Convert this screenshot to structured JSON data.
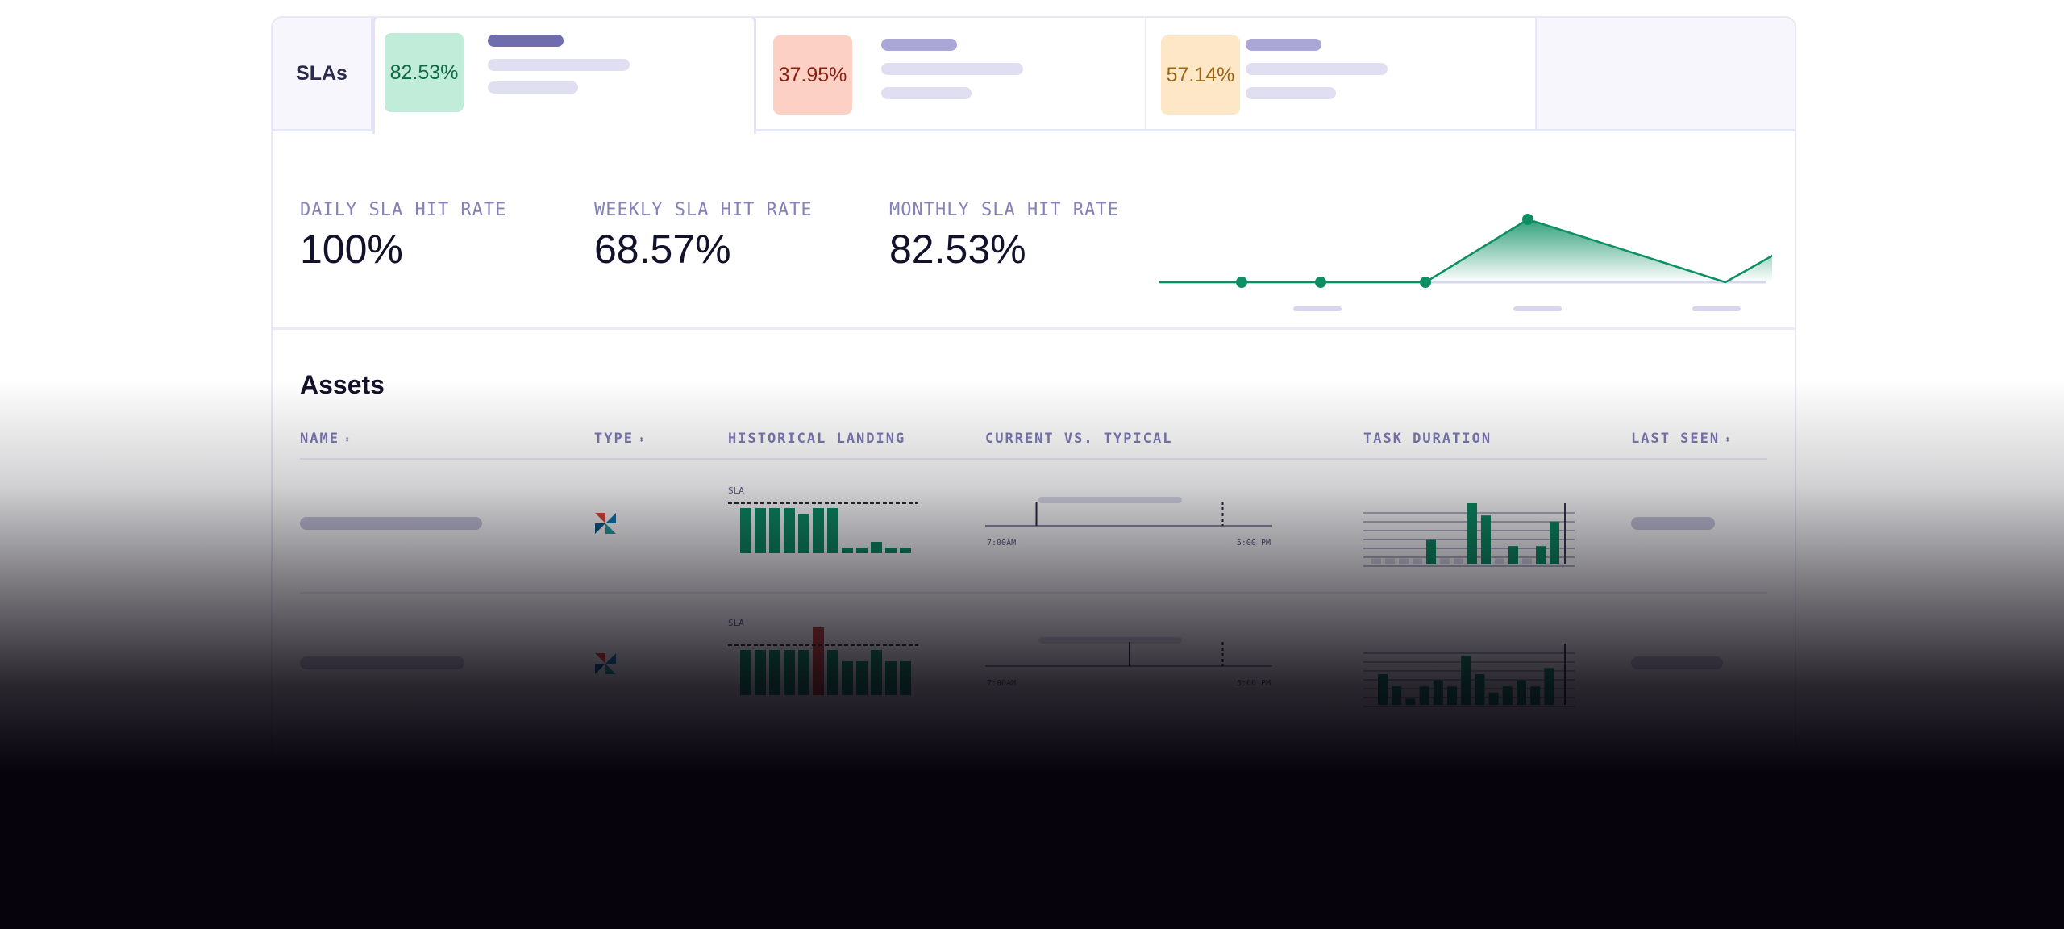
{
  "tabs": {
    "label": "SLAs",
    "items": [
      {
        "value": "82.53%",
        "bg": "#c1ecd9",
        "fg": "#0e6a45"
      },
      {
        "value": "37.95%",
        "bg": "#fdd0c5",
        "fg": "#8a1f0f"
      },
      {
        "value": "57.14%",
        "bg": "#fde7c6",
        "fg": "#9c6612"
      }
    ]
  },
  "stats": [
    {
      "label": "DAILY SLA HIT RATE",
      "value": "100%"
    },
    {
      "label": "WEEKLY SLA HIT RATE",
      "value": "68.57%"
    },
    {
      "label": "MONTHLY SLA HIT RATE",
      "value": "82.53%"
    }
  ],
  "trend": {
    "values": [
      0,
      0,
      0,
      1,
      0,
      1
    ]
  },
  "assets": {
    "title": "Assets",
    "columns": [
      {
        "label": "NAME",
        "sortable": true
      },
      {
        "label": "TYPE",
        "sortable": true
      },
      {
        "label": "HISTORICAL LANDING",
        "sortable": false
      },
      {
        "label": "CURRENT VS. TYPICAL",
        "sortable": false
      },
      {
        "label": "TASK DURATION",
        "sortable": false
      },
      {
        "label": "LAST SEEN",
        "sortable": true
      }
    ],
    "sort_glyph": "⬍",
    "sla_label": "SLA",
    "rows": [
      {
        "type_icon": "pinwheel-icon",
        "landing": [
          8,
          8,
          8,
          8,
          7,
          8,
          8,
          1,
          1,
          2,
          1,
          1
        ],
        "landing_late": [],
        "timeline": {
          "start": "7:00AM",
          "end": "5:00 PM",
          "current": 0.17,
          "typical": 0.83
        },
        "durations": [
          1,
          1,
          1,
          1,
          4,
          1,
          1,
          10,
          8,
          1,
          3,
          1,
          3,
          7
        ],
        "durations_failed": [
          0,
          1,
          2,
          3,
          5,
          6,
          9,
          11
        ]
      },
      {
        "type_icon": "pinwheel-icon",
        "landing": [
          8,
          8,
          8,
          8,
          8,
          12,
          8,
          6,
          6,
          8,
          6,
          6
        ],
        "landing_late": [
          5
        ],
        "timeline": {
          "start": "7:00AM",
          "end": "5:00 PM",
          "current": 0.5,
          "typical": 0.83
        },
        "durations": [
          5,
          3,
          1,
          3,
          4,
          3,
          8,
          5,
          2,
          3,
          4,
          3,
          6
        ],
        "durations_failed": []
      }
    ]
  },
  "colors": {
    "accent": "#0c8f63",
    "late": "#c4453a"
  }
}
